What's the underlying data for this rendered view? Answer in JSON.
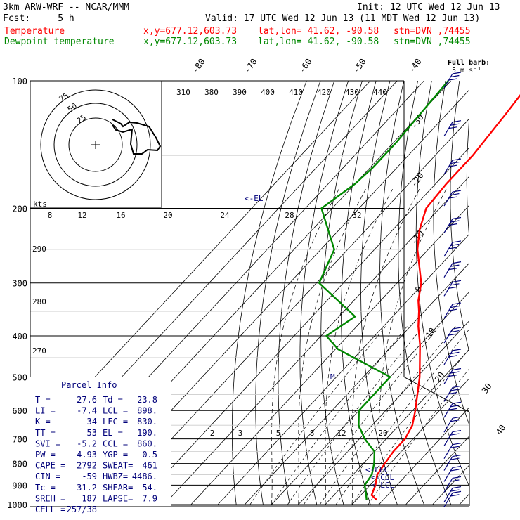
{
  "header": {
    "model": "3km ARW-WRF -- NCAR/MMM",
    "init": "Init: 12 UTC Wed 12 Jun 13",
    "fcst": "Fcst:     5 h",
    "valid": "Valid: 17 UTC Wed 12 Jun 13 (11 MDT Wed 12 Jun 13)",
    "temp_label": "Temperature",
    "dew_label": "Dewpoint temperature",
    "xy": "x,y=677.12,603.73",
    "latlon": "lat,lon= 41.62, -90.58",
    "stn": "stn=DVN ,74455",
    "temp_color": "#ff0000",
    "dew_color": "#008800"
  },
  "barb_label": [
    "Full barb:",
    "5 m s⁻¹"
  ],
  "parcel_info": {
    "title": "Parcel Info",
    "rows": [
      [
        "T   =",
        "27.6",
        "Td =",
        "23.8"
      ],
      [
        "LI  =",
        "-7.4",
        "LCL =",
        "898."
      ],
      [
        "K   =",
        "34",
        "LFC =",
        "830."
      ],
      [
        "TT  =",
        "53",
        "EL  =",
        "190."
      ],
      [
        "SVI =",
        "-5.2",
        "CCL =",
        "860."
      ],
      [
        "PW  =",
        "4.93",
        "YGP =",
        "0.5"
      ],
      [
        "CAPE =",
        "2792",
        "SWEAT=",
        "461"
      ],
      [
        "CIN  =",
        "-59",
        "HWBZ=",
        "4486."
      ],
      [
        "Tc =",
        "31.2",
        "SHEAR=",
        "54."
      ],
      [
        "SREH =",
        "187",
        "LAPSE=",
        "7.9"
      ],
      [
        "CELL =",
        "257/38",
        "",
        ""
      ]
    ]
  },
  "markers": [
    "<-EL",
    "<-LFC",
    "<-CCL",
    "<-LCL"
  ],
  "hodograph": {
    "kts_label": "kts",
    "rings": [
      "25",
      "50",
      "75"
    ]
  },
  "chart_data": {
    "type": "line",
    "title": "",
    "ylabel_ticks": [
      "100",
      "200",
      "300",
      "400",
      "500",
      "600",
      "700",
      "800",
      "900",
      "1000"
    ],
    "pressure_levels": [
      100,
      200,
      300,
      400,
      500,
      600,
      700,
      800,
      900,
      1000
    ],
    "isotherm_labels": [
      "-80",
      "-70",
      "-60",
      "-50",
      "-40",
      "-30",
      "-20",
      "-10",
      "0",
      "10",
      "20",
      "30",
      "40"
    ],
    "theta_labels": [
      "310",
      "380",
      "390",
      "400",
      "410",
      "420",
      "430",
      "440"
    ],
    "mixing_ratio_top": [
      "8",
      "12",
      "16",
      "20",
      "24",
      "28",
      "32"
    ],
    "mixing_ratio_low": [
      "2",
      "3",
      "5",
      "8",
      "12",
      "20"
    ],
    "left_labels": [
      "290",
      "280",
      "270"
    ],
    "series": [
      {
        "name": "Temperature",
        "color": "#ff0000",
        "pressure": [
          100,
          120,
          150,
          175,
          200,
          225,
          250,
          300,
          330,
          350,
          380,
          420,
          500,
          600,
          650,
          700,
          750,
          800,
          850,
          900,
          950,
          975
        ],
        "temp_c": [
          -60,
          -58,
          -56,
          -56,
          -55,
          -50,
          -44,
          -31,
          -26,
          -22,
          -17,
          -10,
          1,
          11,
          15,
          17,
          17,
          18,
          19,
          22,
          24,
          27.6
        ]
      },
      {
        "name": "Dewpoint temperature",
        "color": "#008800",
        "pressure": [
          100,
          140,
          160,
          175,
          200,
          225,
          250,
          300,
          360,
          400,
          430,
          500,
          550,
          600,
          650,
          700,
          750,
          800,
          850,
          900,
          950,
          975
        ],
        "temp_c": [
          -91,
          -89,
          -89,
          -90,
          -94,
          -84,
          -75,
          -69,
          -44,
          -48,
          -39,
          -10,
          -10,
          -10,
          -5,
          2,
          10,
          14,
          17,
          18,
          22,
          23.8
        ]
      }
    ],
    "wind_barbs_pressure": [
      100,
      130,
      160,
      190,
      220,
      250,
      280,
      310,
      350,
      400,
      450,
      500,
      550,
      600,
      650,
      700,
      750,
      800,
      850,
      900,
      950,
      975
    ]
  }
}
